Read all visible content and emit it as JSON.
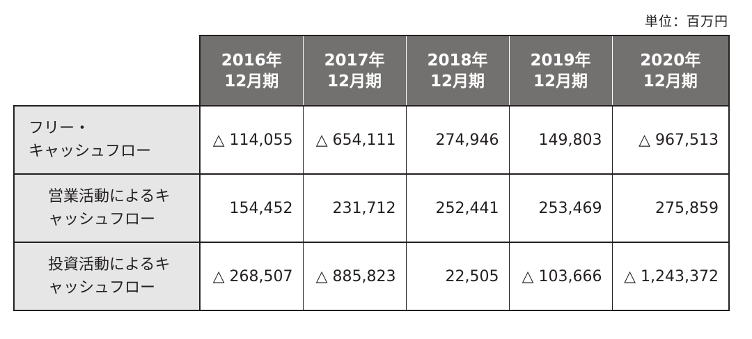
{
  "unit_label": "単位：百万円",
  "columns": [
    {
      "year": "2016年",
      "period": "12月期"
    },
    {
      "year": "2017年",
      "period": "12月期"
    },
    {
      "year": "2018年",
      "period": "12月期"
    },
    {
      "year": "2019年",
      "period": "12月期"
    },
    {
      "year": "2020年",
      "period": "12月期"
    }
  ],
  "rows": [
    {
      "label_line1": "フリー・",
      "label_line2": "キャッシュフロー",
      "values": [
        "△ 114,055",
        "△ 654,111",
        "274,946",
        "149,803",
        "△ 967,513"
      ]
    },
    {
      "label_line1": "営業活動によるキ",
      "label_line2": "ャッシュフロー",
      "values": [
        "154,452",
        "231,712",
        "252,441",
        "253,469",
        "275,859"
      ]
    },
    {
      "label_line1": "投資活動によるキ",
      "label_line2": "ャッシュフロー",
      "values": [
        "△ 268,507",
        "△ 885,823",
        "22,505",
        "△ 103,666",
        "△ 1,243,372"
      ]
    }
  ]
}
